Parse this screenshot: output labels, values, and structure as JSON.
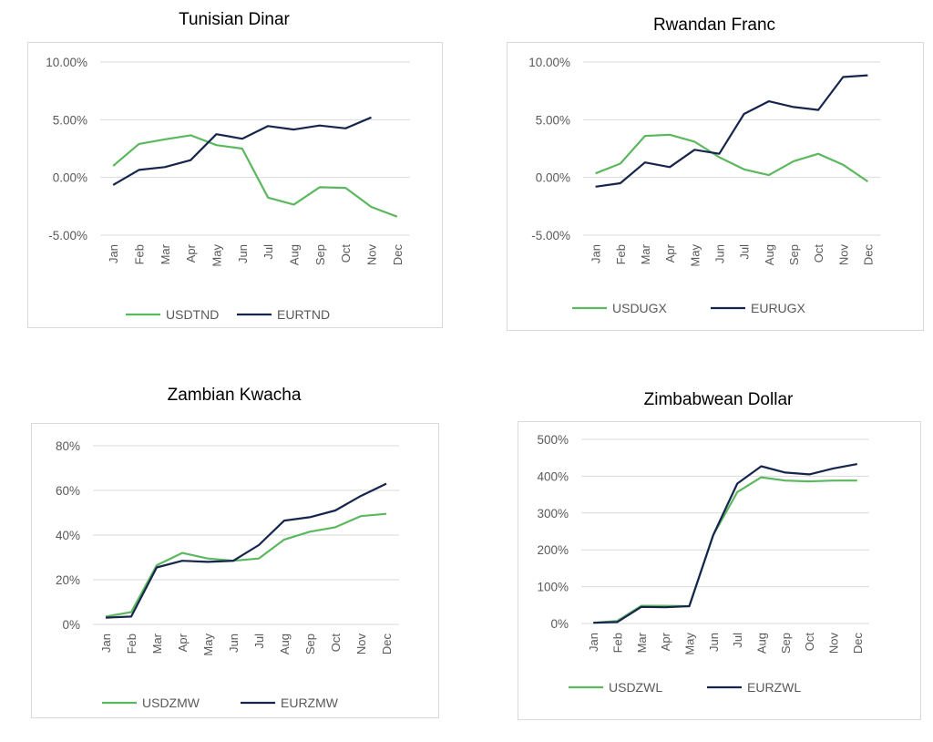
{
  "colors": {
    "usd": "#5cb85f",
    "eur": "#16254d",
    "grid": "#d9d9d9",
    "tick": "#595959"
  },
  "chart_data": [
    {
      "type": "line",
      "title": "Tunisian Dinar",
      "categories": [
        "Jan",
        "Feb",
        "Mar",
        "Apr",
        "May",
        "Jun",
        "Jul",
        "Aug",
        "Sep",
        "Oct",
        "Nov",
        "Dec"
      ],
      "yticks": [
        "10.00%",
        "5.00%",
        "0.00%",
        "-5.00%"
      ],
      "ylim": [
        -5,
        10
      ],
      "series": [
        {
          "name": "USDTND",
          "values": [
            1.0,
            2.9,
            3.3,
            3.65,
            2.8,
            2.5,
            -1.75,
            -2.35,
            -0.85,
            -0.9,
            -2.55,
            -3.4
          ]
        },
        {
          "name": "EURTND",
          "values": [
            -0.65,
            0.65,
            0.9,
            1.5,
            3.75,
            3.35,
            4.45,
            4.15,
            4.5,
            4.25,
            5.2,
            null
          ]
        }
      ],
      "legend": "bottom"
    },
    {
      "type": "line",
      "title": "Rwandan Franc",
      "categories": [
        "Jan",
        "Feb",
        "Mar",
        "Apr",
        "May",
        "Jun",
        "Jul",
        "Aug",
        "Sep",
        "Oct",
        "Nov",
        "Dec"
      ],
      "yticks": [
        "10.00%",
        "5.00%",
        "0.00%",
        "-5.00%"
      ],
      "ylim": [
        -5,
        10
      ],
      "series": [
        {
          "name": "USDUGX",
          "values": [
            0.35,
            1.2,
            3.6,
            3.7,
            3.1,
            1.75,
            0.7,
            0.2,
            1.4,
            2.05,
            1.1,
            -0.35
          ]
        },
        {
          "name": "EURUGX",
          "values": [
            -0.8,
            -0.5,
            1.3,
            0.9,
            2.4,
            2.05,
            5.5,
            6.6,
            6.1,
            5.85,
            8.7,
            8.85
          ]
        }
      ],
      "legend": "bottom"
    },
    {
      "type": "line",
      "title": "Zambian Kwacha",
      "categories": [
        "Jan",
        "Feb",
        "Mar",
        "Apr",
        "May",
        "Jun",
        "Jul",
        "Aug",
        "Sep",
        "Oct",
        "Nov",
        "Dec"
      ],
      "yticks": [
        "80%",
        "60%",
        "40%",
        "20%",
        "0%"
      ],
      "ylim": [
        0,
        80
      ],
      "series": [
        {
          "name": "USDZMW",
          "values": [
            3.5,
            5.5,
            26.5,
            32,
            29.5,
            28.5,
            29.5,
            38,
            41.5,
            43.5,
            48.5,
            49.5
          ]
        },
        {
          "name": "EURZMW",
          "values": [
            3,
            3.5,
            25.5,
            28.5,
            28,
            28.5,
            35.5,
            46.5,
            48,
            51,
            57.5,
            63
          ]
        }
      ],
      "legend": "bottom"
    },
    {
      "type": "line",
      "title": "Zimbabwean Dollar",
      "categories": [
        "Jan",
        "Feb",
        "Mar",
        "Apr",
        "May",
        "Jun",
        "Jul",
        "Aug",
        "Sep",
        "Oct",
        "Nov",
        "Dec"
      ],
      "yticks": [
        "500%",
        "400%",
        "300%",
        "200%",
        "100%",
        "0%"
      ],
      "ylim": [
        0,
        500
      ],
      "series": [
        {
          "name": "USDZWL",
          "values": [
            2,
            7,
            48,
            48,
            47,
            240,
            357,
            397,
            388,
            386,
            388,
            388
          ]
        },
        {
          "name": "EURZWL",
          "values": [
            2,
            4,
            45,
            44,
            47,
            240,
            380,
            427,
            410,
            405,
            421,
            433
          ]
        }
      ],
      "legend": "bottom"
    }
  ]
}
